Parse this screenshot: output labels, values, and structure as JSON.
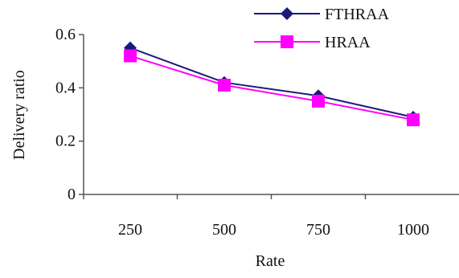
{
  "chart_data": {
    "type": "line",
    "title": "",
    "xlabel": "Rate",
    "ylabel": "Delivery ratio",
    "categories": [
      "250",
      "500",
      "750",
      "1000"
    ],
    "ylim": [
      0,
      0.6
    ],
    "yticks": [
      0,
      0.2,
      0.4,
      0.6
    ],
    "ytick_labels": [
      "0",
      "0.2",
      "0.4",
      "0.6"
    ],
    "grid": false,
    "legend_position": "top-right",
    "series": [
      {
        "name": "FTHRAA",
        "values": [
          0.55,
          0.42,
          0.37,
          0.29
        ],
        "color": "#1a1a7a",
        "marker": "diamond"
      },
      {
        "name": "HRAA",
        "values": [
          0.52,
          0.41,
          0.35,
          0.28
        ],
        "color": "#ff00ff",
        "marker": "square"
      }
    ]
  }
}
